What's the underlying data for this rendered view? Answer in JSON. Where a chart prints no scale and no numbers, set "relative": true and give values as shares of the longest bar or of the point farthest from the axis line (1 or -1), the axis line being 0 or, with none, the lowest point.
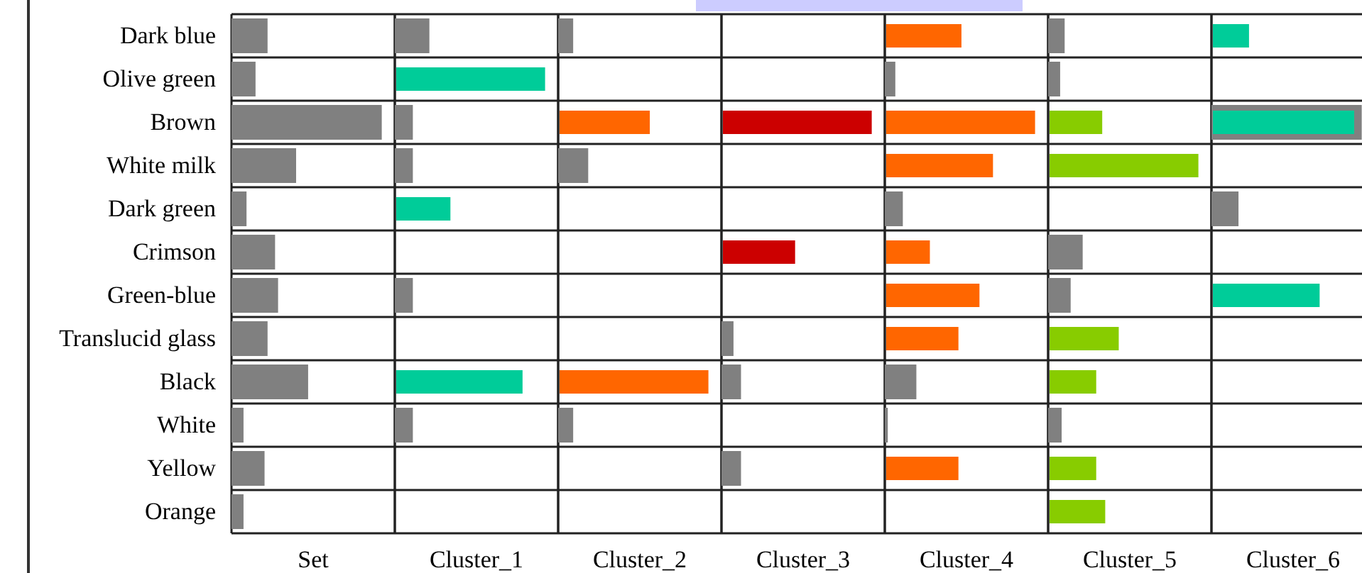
{
  "chart_data": [
    {
      "type": "bar",
      "orientation": "horizontal",
      "relative": true,
      "tick_labels": "y",
      "xlabel": "Set",
      "categories": [
        "Dark blue",
        "Olive green",
        "Brown",
        "White milk",
        "Dark green",
        "Crimson",
        "Green-blue",
        "Translucid glass",
        "Black",
        "White",
        "Yellow",
        "Orange"
      ],
      "series": [
        {
          "color": "#808080",
          "values": [
            0.24,
            0.16,
            1,
            0.43,
            0.1,
            0.29,
            0.31,
            0.24,
            0.51,
            0.08,
            0.22,
            0.08
          ]
        }
      ]
    },
    {
      "type": "bar",
      "orientation": "horizontal",
      "relative": true,
      "tick_labels": false,
      "xlabel": "Cluster_1",
      "categories": [
        null,
        null,
        null,
        null,
        null,
        null,
        null,
        null,
        null,
        null,
        null,
        null
      ],
      "series": [
        {
          "color": "#808080",
          "values": [
            0.23,
            null,
            0.12,
            0.12,
            null,
            null,
            0.12,
            null,
            null,
            0.12,
            null,
            null
          ]
        },
        {
          "color": "#00cc99",
          "values": [
            null,
            1,
            null,
            null,
            0.37,
            null,
            null,
            null,
            0.85,
            null,
            null,
            null
          ]
        }
      ]
    },
    {
      "type": "bar",
      "orientation": "horizontal",
      "relative": true,
      "tick_labels": false,
      "xlabel": "Cluster_2",
      "categories": [
        null,
        null,
        null,
        null,
        null,
        null,
        null,
        null,
        null,
        null,
        null,
        null
      ],
      "series": [
        {
          "color": "#808080",
          "values": [
            0.1,
            null,
            null,
            0.2,
            null,
            null,
            null,
            null,
            null,
            0.1,
            null,
            null
          ]
        },
        {
          "color": "#ff6600",
          "values": [
            null,
            null,
            0.61,
            null,
            null,
            null,
            null,
            null,
            1,
            null,
            null,
            null
          ]
        }
      ]
    },
    {
      "type": "bar",
      "orientation": "horizontal",
      "relative": true,
      "tick_labels": false,
      "xlabel": "Cluster_3",
      "categories": [
        null,
        null,
        null,
        null,
        null,
        null,
        null,
        null,
        null,
        null,
        null,
        null
      ],
      "series": [
        {
          "color": "#808080",
          "values": [
            null,
            null,
            null,
            null,
            null,
            null,
            null,
            0.08,
            0.13,
            null,
            0.13,
            null
          ]
        },
        {
          "color": "#cc0000",
          "values": [
            null,
            null,
            1,
            null,
            null,
            0.49,
            null,
            null,
            null,
            null,
            null,
            null
          ]
        }
      ]
    },
    {
      "type": "bar",
      "orientation": "horizontal",
      "relative": true,
      "tick_labels": false,
      "xlabel": "Cluster_4",
      "categories": [
        null,
        null,
        null,
        null,
        null,
        null,
        null,
        null,
        null,
        null,
        null,
        null
      ],
      "series": [
        {
          "color": "#808080",
          "values": [
            null,
            0.07,
            null,
            null,
            0.12,
            null,
            null,
            null,
            0.21,
            0.02,
            null,
            null
          ]
        },
        {
          "color": "#ff6600",
          "values": [
            0.51,
            null,
            1,
            0.72,
            null,
            0.3,
            0.63,
            0.49,
            null,
            null,
            0.49,
            null
          ]
        }
      ]
    },
    {
      "type": "bar",
      "orientation": "horizontal",
      "relative": true,
      "tick_labels": false,
      "xlabel": "Cluster_5",
      "categories": [
        null,
        null,
        null,
        null,
        null,
        null,
        null,
        null,
        null,
        null,
        null,
        null
      ],
      "series": [
        {
          "color": "#808080",
          "values": [
            0.11,
            0.08,
            null,
            null,
            null,
            0.23,
            0.15,
            null,
            null,
            0.09,
            null,
            null
          ]
        },
        {
          "color": "#88cc00",
          "values": [
            null,
            null,
            0.36,
            1,
            null,
            null,
            null,
            0.47,
            0.32,
            null,
            0.32,
            0.38
          ]
        }
      ]
    },
    {
      "type": "bar",
      "orientation": "horizontal",
      "relative": true,
      "tick_labels": false,
      "xlabel": "Cluster_6",
      "categories": [
        null,
        null,
        null,
        null,
        null,
        null,
        null,
        null,
        null,
        null,
        null,
        null
      ],
      "series": [
        {
          "color": "#808080",
          "values": [
            null,
            null,
            1,
            null,
            0.18,
            null,
            null,
            null,
            null,
            null,
            null,
            null
          ]
        },
        {
          "color": "#00cc99",
          "values": [
            0.25,
            null,
            0.95,
            null,
            null,
            null,
            0.72,
            null,
            null,
            null,
            null,
            null
          ]
        }
      ]
    }
  ]
}
